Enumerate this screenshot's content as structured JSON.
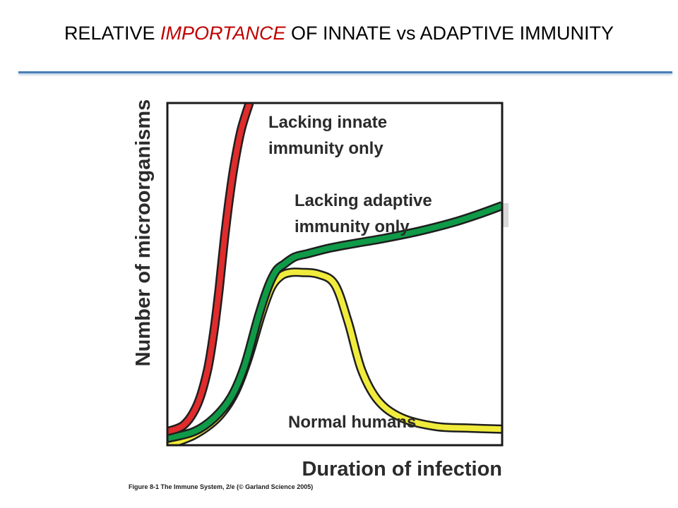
{
  "slide": {
    "title_pre": "RELATIVE ",
    "title_emph": "IMPORTANCE",
    "title_post": " OF INNATE vs ADAPTIVE IMMUNITY",
    "title_emph_color": "#c00000",
    "rule_color": "#4a7fb5"
  },
  "chart_data": {
    "type": "line",
    "title": "",
    "xlabel": "Duration of infection",
    "ylabel": "Number of microorganisms",
    "xlim": [
      0,
      100
    ],
    "ylim": [
      0,
      100
    ],
    "grid": false,
    "axis_tick_labels": false,
    "series": [
      {
        "name": "Lacking innate immunity only",
        "color": "#e02c2c",
        "x": [
          0,
          5,
          9,
          12,
          14,
          15.5,
          17,
          18.5,
          20,
          22,
          24.5
        ],
        "y": [
          4,
          6,
          12,
          22,
          34,
          46,
          60,
          72,
          82,
          92,
          100
        ]
      },
      {
        "name": "Lacking adaptive immunity only",
        "color": "#0f9a48",
        "x": [
          0,
          8,
          14,
          19,
          23,
          27,
          30,
          32.5,
          35,
          38,
          42,
          48,
          55,
          65,
          75,
          85,
          93,
          100
        ],
        "y": [
          2,
          4,
          8,
          14,
          23,
          37,
          46,
          51,
          53,
          55,
          56,
          57.5,
          58.8,
          60.5,
          62.5,
          65,
          67.5,
          70
        ]
      },
      {
        "name": "Normal humans",
        "color": "#f1ec3c",
        "x": [
          0,
          8,
          15,
          20,
          24,
          28,
          31,
          34,
          37,
          40,
          45,
          50,
          54,
          58,
          63,
          70,
          80,
          90,
          100
        ],
        "y": [
          0,
          3,
          8,
          15,
          25,
          38,
          46,
          49.5,
          50.5,
          50.5,
          50,
          47,
          36,
          22,
          13,
          8,
          5.5,
          5,
          4.7
        ]
      }
    ]
  },
  "caption": "Figure 8-1  The Immune System, 2/e (© Garland Science 2005)"
}
